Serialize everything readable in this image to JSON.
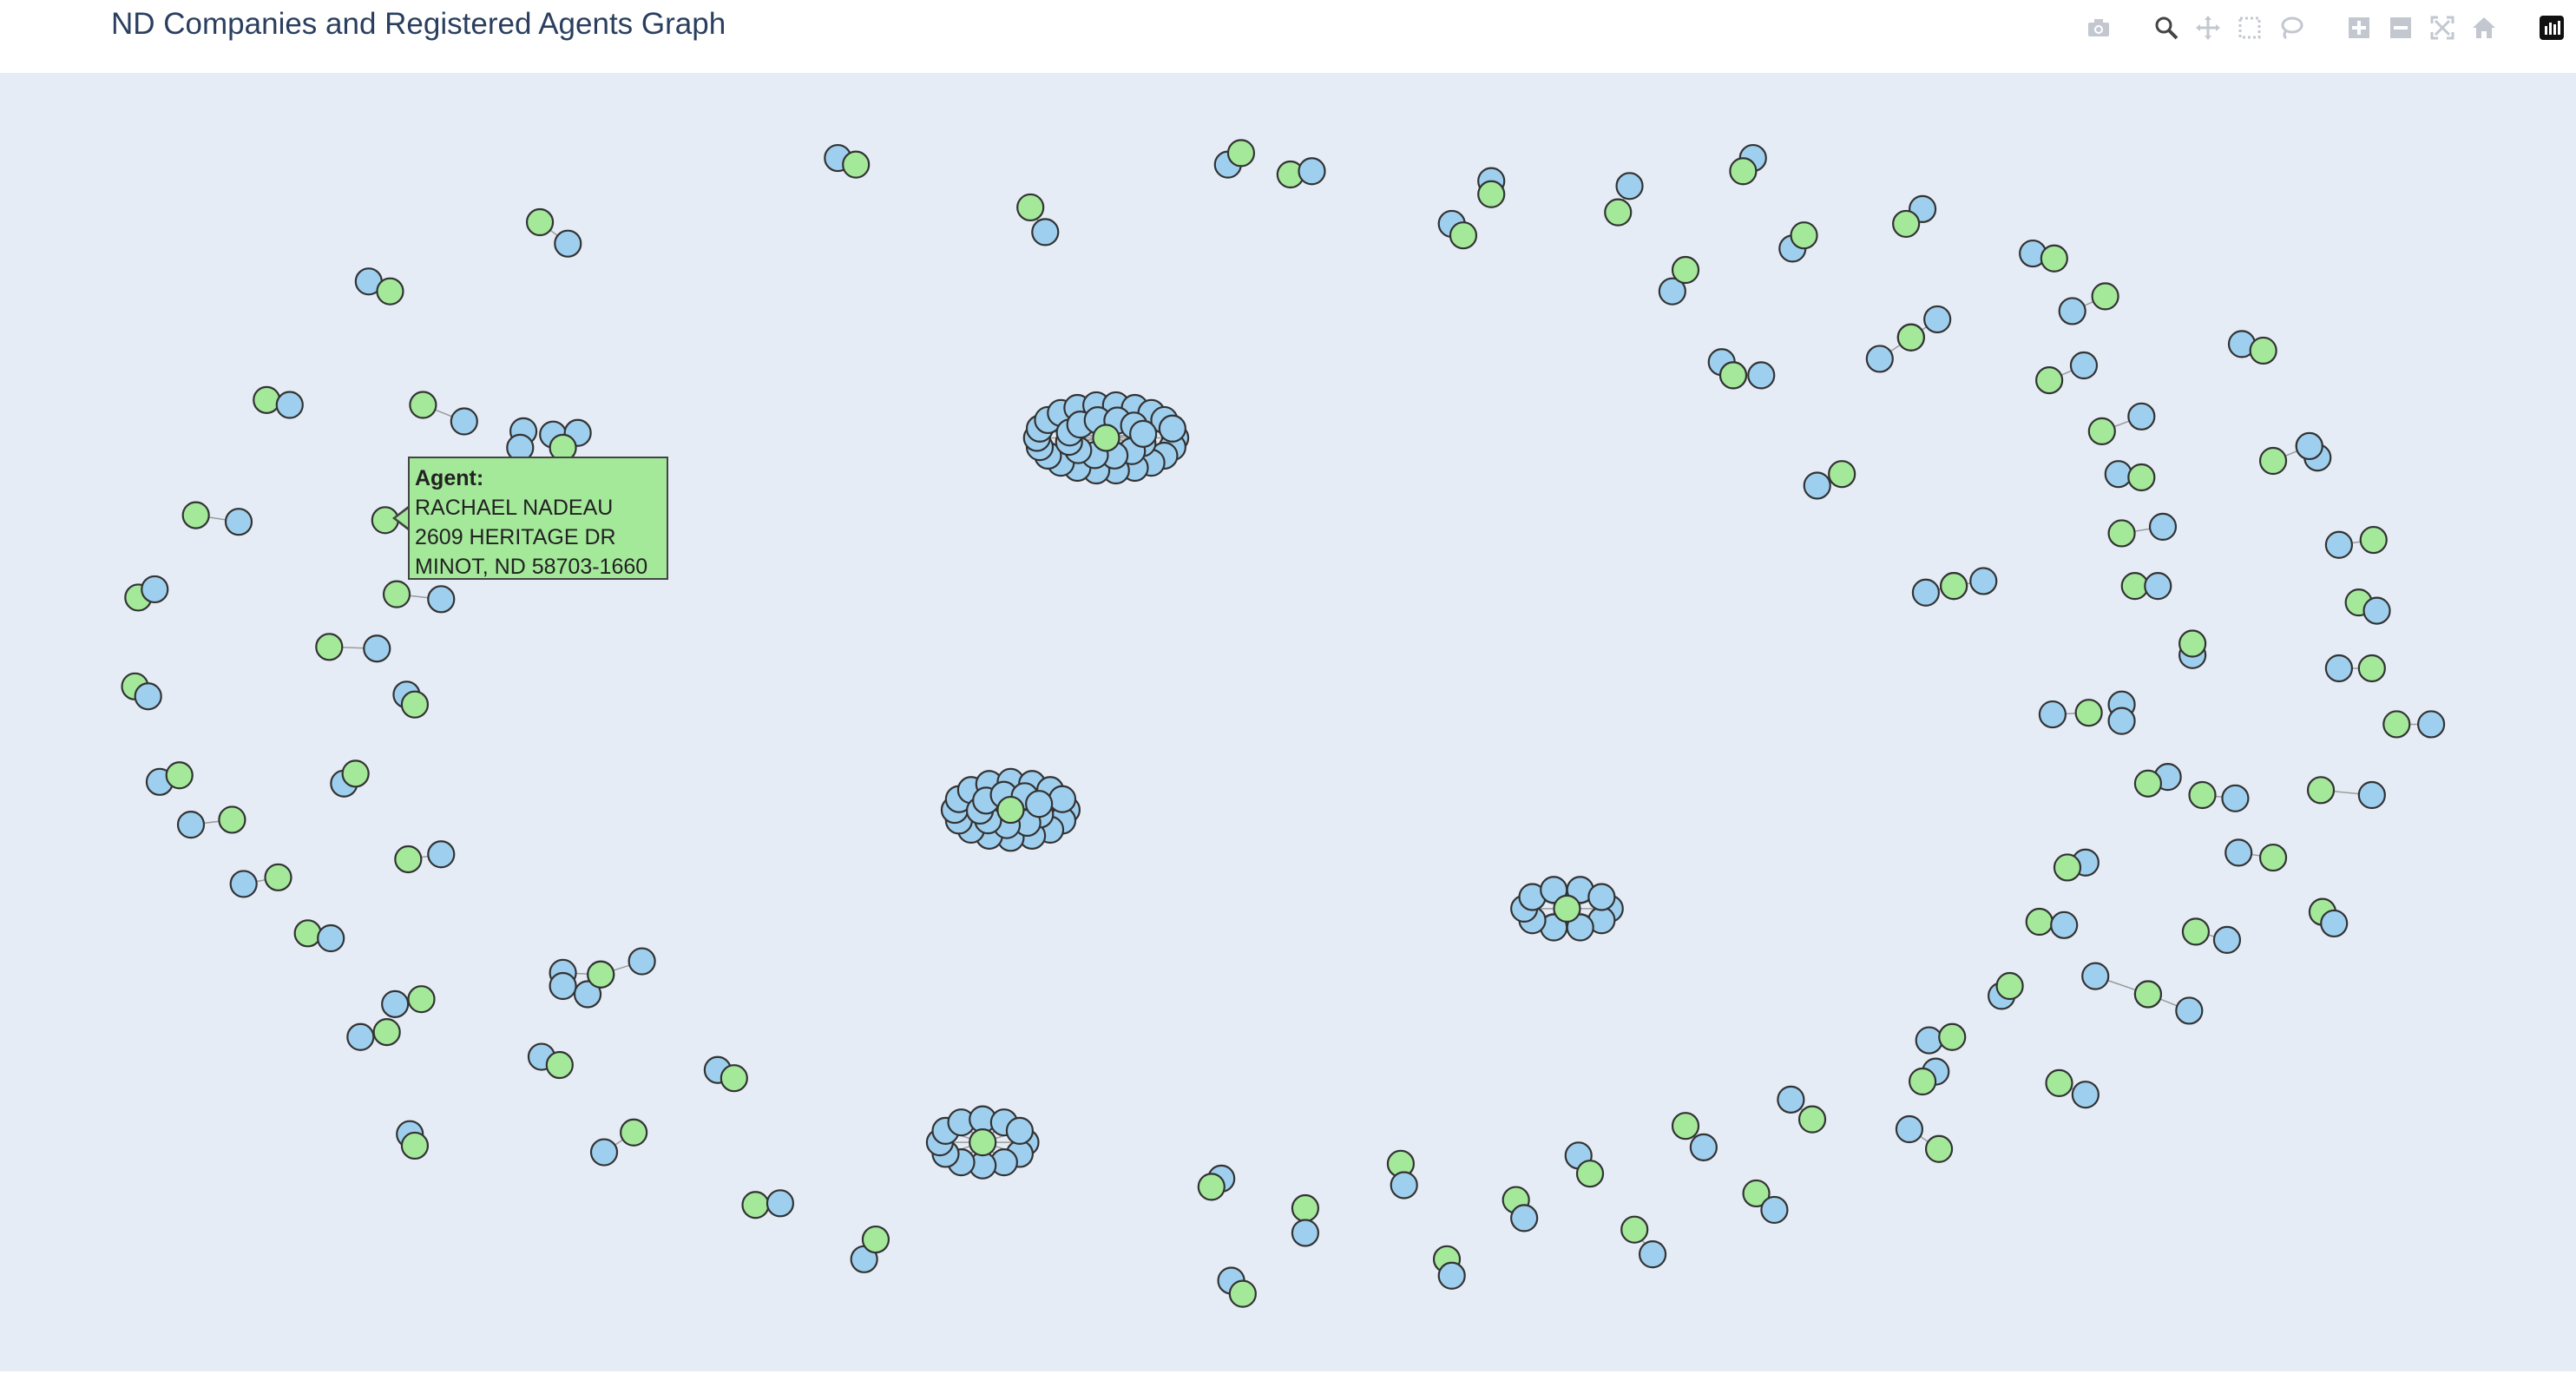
{
  "title": "ND Companies and Registered Agents Graph",
  "colors": {
    "plot_background": "#e5ecf6",
    "company_node": "#9fcfee",
    "agent_node": "#a4e89a",
    "node_outline": "#333333",
    "edge": "#9a9a9a",
    "title": "#2a3f5f"
  },
  "modebar": [
    {
      "icon": "camera-icon"
    },
    {
      "icon": "zoom-icon"
    },
    {
      "icon": "pan-icon"
    },
    {
      "icon": "box-select-icon"
    },
    {
      "icon": "lasso-select-icon"
    },
    {
      "icon": "zoom-in-icon"
    },
    {
      "icon": "zoom-out-icon"
    },
    {
      "icon": "autoscale-icon"
    },
    {
      "icon": "reset-axes-icon"
    },
    {
      "icon": "plotly-logo-icon"
    }
  ],
  "tooltip": {
    "header": "Agent:",
    "name": "RACHAEL  NADEAU",
    "street": "2609 HERITAGE DR",
    "city": "MINOT, ND  58703-1660"
  }
}
